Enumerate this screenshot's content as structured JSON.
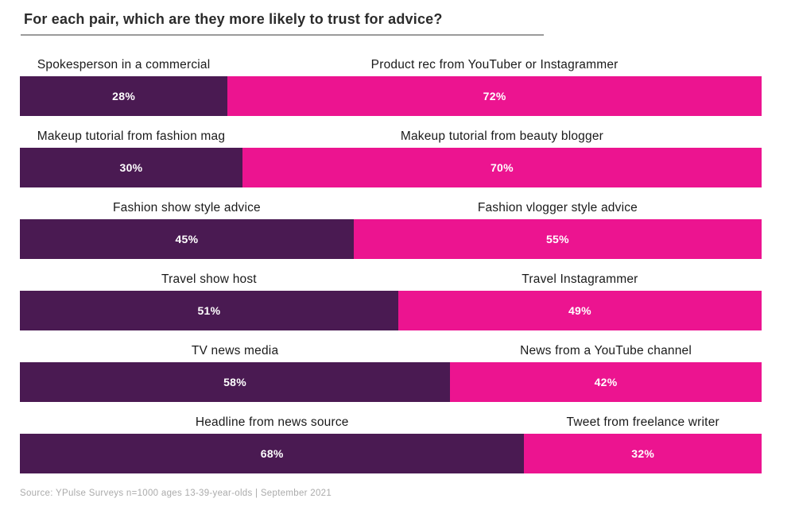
{
  "header": {
    "title": "For each pair, which are they more likely to trust for advice?"
  },
  "footer": {
    "source": "Source: YPulse Surveys n=1000 ages 13-39-year-olds | September 2021"
  },
  "chart_data": {
    "type": "bar",
    "subtype": "paired-stacked-horizontal",
    "title": "For each pair, which are they more likely to trust for advice?",
    "source": "Source: YPulse Surveys n=1000 ages 13-39-year-olds | September 2021",
    "unit": "%",
    "xlim": [
      0,
      100
    ],
    "grid": false,
    "legend": "none",
    "colors": {
      "left_traditional": "#4A1A52",
      "right_creator": "#EC1490"
    },
    "series": [
      {
        "name": "traditional-media",
        "color": "#4A1A52",
        "values": [
          28,
          30,
          45,
          51,
          58,
          68
        ]
      },
      {
        "name": "creator-media",
        "color": "#EC1490",
        "values": [
          72,
          70,
          55,
          49,
          42,
          32
        ]
      }
    ],
    "pairs": [
      {
        "left_label": "Spokesperson in a commercial",
        "left_value": 28,
        "right_label": "Product rec from YouTuber or Instagrammer",
        "right_value": 72
      },
      {
        "left_label": "Makeup tutorial from fashion mag",
        "left_value": 30,
        "right_label": "Makeup tutorial from beauty blogger",
        "right_value": 70
      },
      {
        "left_label": "Fashion show style advice",
        "left_value": 45,
        "right_label": "Fashion vlogger style advice",
        "right_value": 55
      },
      {
        "left_label": "Travel show host",
        "left_value": 51,
        "right_label": "Travel Instagrammer",
        "right_value": 49
      },
      {
        "left_label": "TV news media",
        "left_value": 58,
        "right_label": "News from a YouTube channel",
        "right_value": 42
      },
      {
        "left_label": "Headline from news source",
        "left_value": 68,
        "right_label": "Tweet from freelance writer",
        "right_value": 32
      }
    ]
  }
}
